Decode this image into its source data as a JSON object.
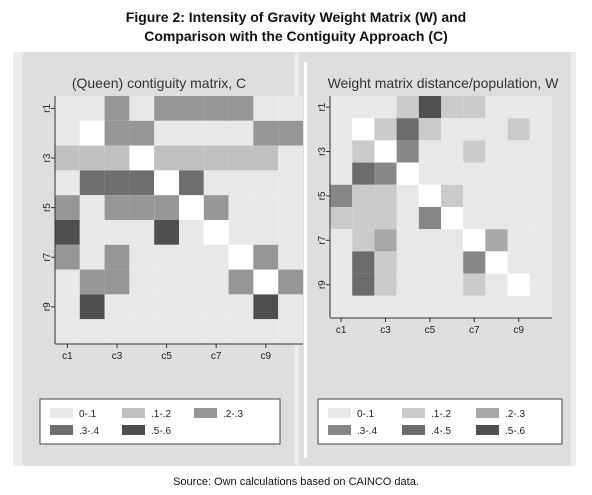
{
  "figure": {
    "title_line1": "Figure 2: Intensity of Gravity Weight Matrix (W) and",
    "title_line2": "Comparison with the Contiguity Approach (C)",
    "source": "Source: Own calculations based on CAINCO data."
  },
  "chart_data": [
    {
      "type": "heatmap",
      "title": "(Queen) contiguity matrix, C",
      "x_tick_labels": [
        "c1",
        "c3",
        "c5",
        "c7",
        "c9"
      ],
      "y_tick_labels": [
        "r1",
        "r3",
        "r5",
        "r7",
        "r9"
      ],
      "rows": 10,
      "cols": 10,
      "legend_placement": "bottom",
      "legend": [
        {
          "label": "0-.1",
          "color": "#e8e8e8"
        },
        {
          "label": ".1-.2",
          "color": "#c0c0c0"
        },
        {
          "label": ".2-.3",
          "color": "#969696"
        },
        {
          "label": ".3-.4",
          "color": "#6e6e6e"
        },
        {
          "label": ".5-.6",
          "color": "#4e4e4e"
        }
      ],
      "values": [
        [
          0.05,
          0.05,
          0.25,
          0.05,
          0.25,
          0.25,
          0.25,
          0.25,
          0.05,
          0.05
        ],
        [
          0.05,
          0.0,
          0.25,
          0.25,
          0.05,
          0.05,
          0.05,
          0.05,
          0.25,
          0.25
        ],
        [
          0.15,
          0.15,
          0.15,
          0.0,
          0.15,
          0.15,
          0.15,
          0.15,
          0.15,
          0.05
        ],
        [
          0.05,
          0.35,
          0.35,
          0.35,
          0.0,
          0.35,
          0.05,
          0.05,
          0.05,
          0.05
        ],
        [
          0.25,
          0.05,
          0.25,
          0.25,
          0.25,
          0.0,
          0.25,
          0.05,
          0.05,
          0.05
        ],
        [
          0.55,
          0.05,
          0.05,
          0.05,
          0.55,
          0.05,
          0.0,
          0.05,
          0.05,
          0.05
        ],
        [
          0.25,
          0.05,
          0.25,
          0.05,
          0.05,
          0.05,
          0.05,
          0.0,
          0.25,
          0.05
        ],
        [
          0.05,
          0.25,
          0.25,
          0.05,
          0.05,
          0.05,
          0.05,
          0.25,
          0.0,
          0.25
        ],
        [
          0.05,
          0.55,
          0.05,
          0.05,
          0.05,
          0.05,
          0.05,
          0.05,
          0.55,
          0.05
        ],
        [
          0.05,
          0.05,
          0.05,
          0.05,
          0.05,
          0.05,
          0.05,
          0.05,
          0.05,
          0.05
        ]
      ]
    },
    {
      "type": "heatmap",
      "title": "Weight matrix distance/population, W",
      "x_tick_labels": [
        "c1",
        "c3",
        "c5",
        "c7",
        "c9"
      ],
      "y_tick_labels": [
        "r1",
        "r3",
        "r5",
        "r7",
        "r9"
      ],
      "rows": 10,
      "cols": 10,
      "legend_placement": "bottom",
      "legend": [
        {
          "label": "0-.1",
          "color": "#e8e8e8"
        },
        {
          "label": ".1-.2",
          "color": "#cbcbcb"
        },
        {
          "label": ".2-.3",
          "color": "#a8a8a8"
        },
        {
          "label": ".3-.4",
          "color": "#878787"
        },
        {
          "label": ".4-.5",
          "color": "#6b6b6b"
        },
        {
          "label": ".5-.6",
          "color": "#505050"
        }
      ],
      "values": [
        [
          0.05,
          0.05,
          0.05,
          0.15,
          0.55,
          0.15,
          0.15,
          0.05,
          0.05,
          0.05
        ],
        [
          0.05,
          0.0,
          0.15,
          0.45,
          0.15,
          0.05,
          0.05,
          0.05,
          0.15,
          0.05
        ],
        [
          0.05,
          0.15,
          0.0,
          0.35,
          0.05,
          0.05,
          0.15,
          0.05,
          0.05,
          0.05
        ],
        [
          0.05,
          0.45,
          0.35,
          0.0,
          0.05,
          0.05,
          0.05,
          0.05,
          0.05,
          0.05
        ],
        [
          0.35,
          0.15,
          0.15,
          0.05,
          0.0,
          0.15,
          0.05,
          0.05,
          0.05,
          0.05
        ],
        [
          0.15,
          0.15,
          0.15,
          0.05,
          0.35,
          0.0,
          0.05,
          0.05,
          0.05,
          0.05
        ],
        [
          0.05,
          0.15,
          0.25,
          0.05,
          0.05,
          0.05,
          0.0,
          0.25,
          0.05,
          0.05
        ],
        [
          0.05,
          0.45,
          0.15,
          0.05,
          0.05,
          0.05,
          0.35,
          0.0,
          0.05,
          0.05
        ],
        [
          0.05,
          0.45,
          0.15,
          0.05,
          0.05,
          0.05,
          0.15,
          0.05,
          0.0,
          0.05
        ],
        [
          0.05,
          0.05,
          0.05,
          0.05,
          0.05,
          0.05,
          0.05,
          0.05,
          0.05,
          0.05
        ]
      ]
    }
  ]
}
